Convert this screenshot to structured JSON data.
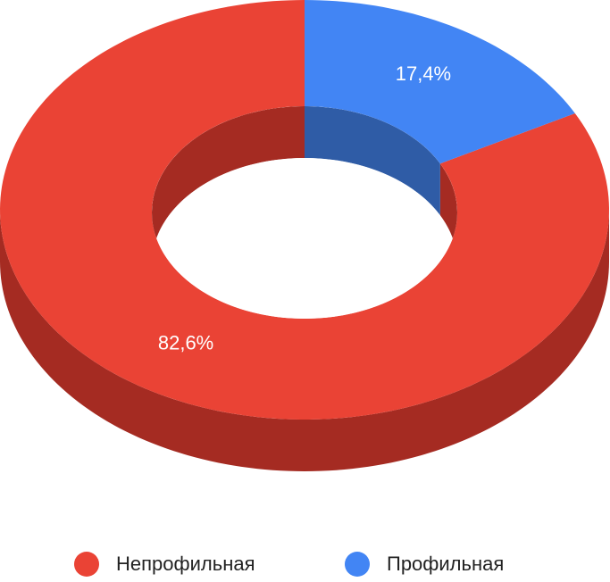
{
  "chart_data": {
    "type": "pie",
    "categories": [
      "Непрофильная",
      "Профильная"
    ],
    "values": [
      82.6,
      17.4
    ],
    "value_labels": [
      "82,6%",
      "17,4%"
    ],
    "colors": [
      "#ea4335",
      "#4285f4"
    ],
    "side_colors": [
      "#a52b22",
      "#2f5ca6"
    ]
  }
}
